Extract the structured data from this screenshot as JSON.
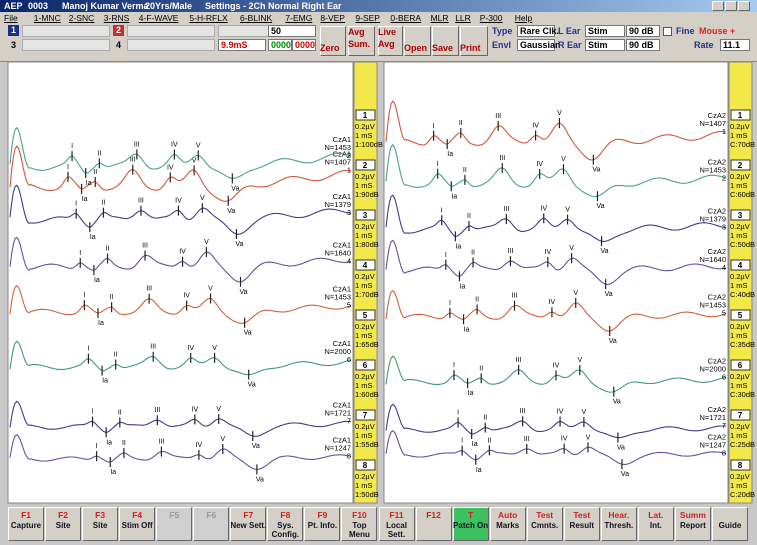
{
  "title_bar": {
    "app": "AEP",
    "record": "0003",
    "patient": "Manoj Kumar Verma",
    "age_sex": "20Yrs/Male",
    "settings": "Settings - 2Ch Normal Right Ear"
  },
  "menu": [
    "File",
    "1-MNC",
    "2-SNC",
    "3-RNS",
    "4-F-WAVE",
    "5-H-RFLX",
    "6-BLINK",
    "7-EMG",
    "8-VEP",
    "9-SEP",
    "0-BERA",
    "MLR",
    "LLR",
    "P-300",
    "Help"
  ],
  "toolbar": {
    "channel_1": "1",
    "channel_3": "3",
    "channel_2": "2",
    "channel_4": "4",
    "sweeps": "50",
    "window": "9.9mS",
    "count_a": "0000",
    "count_b": "0000",
    "zero": "Zero",
    "avg": "Avg",
    "sum": "Sum.",
    "live": "Live",
    "live_avg": "Avg",
    "open": "Open",
    "save": "Save",
    "print": "Print",
    "type_label": "Type",
    "type_value": "Rare Clk.",
    "envl_label": "Envl",
    "envl_value": "Gaussian",
    "l_ear": "L Ear",
    "l_stim": "Stim",
    "l_db": "90 dB",
    "r_ear": "R Ear",
    "r_stim": "Stim",
    "r_db": "90 dB",
    "fine": "Fine",
    "mouse": "Mouse +",
    "rate_label": "Rate",
    "rate_value": "11.1"
  },
  "peak_labels": [
    "I",
    "Ia",
    "II",
    "III",
    "IV",
    "V",
    "Va"
  ],
  "left_panel": {
    "traces": [
      {
        "site": "CzA1",
        "n": "N=1407",
        "num": "1",
        "gain": "0.2µV",
        "time": "1 mS",
        "level": "1:100dB",
        "color": "#d0573c"
      },
      {
        "site": "CzA1",
        "n": "N=1453",
        "num": "2",
        "gain": "0.2µV",
        "time": "1 mS",
        "level": "1:90dB",
        "color": "#4ba47c"
      },
      {
        "site": "CzA1",
        "n": "N=1379",
        "num": "3",
        "gain": "0.2µV",
        "time": "1 mS",
        "level": "1:80dB",
        "color": "#3d3d8c"
      },
      {
        "site": "CzA1",
        "n": "N=1640",
        "num": "4",
        "gain": "0.2µV",
        "time": "1 mS",
        "level": "1:70dB",
        "color": "#6b4ca2"
      },
      {
        "site": "CzA1",
        "n": "N=1453",
        "num": "5",
        "gain": "0.2µV",
        "time": "1 mS",
        "level": "1:65dB",
        "color": "#d0603c"
      },
      {
        "site": "CzA1",
        "n": "N=2000",
        "num": "6",
        "gain": "0.2µV",
        "time": "1 mS",
        "level": "1:60dB",
        "color": "#3e9c6c"
      },
      {
        "site": "CzA1",
        "n": "N=1721",
        "num": "7",
        "gain": "0.2µV",
        "time": "1 mS",
        "level": "1:55dB",
        "color": "#3d3d8c"
      },
      {
        "site": "CzA1",
        "n": "N=1247",
        "num": "8",
        "gain": "0.2µV",
        "time": "1 mS",
        "level": "1:50dB",
        "color": "#6b4ca2"
      }
    ]
  },
  "right_panel": {
    "traces": [
      {
        "site": "CzA2",
        "n": "N=1407",
        "num": "1",
        "gain": "0.2µV",
        "time": "1 mS",
        "level": "C:70dB",
        "color": "#d0573c"
      },
      {
        "site": "CzA2",
        "n": "N=1453",
        "num": "2",
        "gain": "0.2µV",
        "time": "1 mS",
        "level": "C:60dB",
        "color": "#4ba47c"
      },
      {
        "site": "CzA2",
        "n": "N=1379",
        "num": "3",
        "gain": "0.2µV",
        "time": "1 mS",
        "level": "C:50dB",
        "color": "#3d3d8c"
      },
      {
        "site": "CzA2",
        "n": "N=1640",
        "num": "4",
        "gain": "0.2µV",
        "time": "1 mS",
        "level": "C:40dB",
        "color": "#6b4ca2"
      },
      {
        "site": "CzA2",
        "n": "N=1453",
        "num": "5",
        "gain": "0.2µV",
        "time": "1 mS",
        "level": "C:35dB",
        "color": "#d0603c"
      },
      {
        "site": "CzA2",
        "n": "N=2000",
        "num": "6",
        "gain": "0.2µV",
        "time": "1 mS",
        "level": "C:30dB",
        "color": "#3e9c6c"
      },
      {
        "site": "CzA2",
        "n": "N=1721",
        "num": "7",
        "gain": "0.2µV",
        "time": "1 mS",
        "level": "C:25dB",
        "color": "#3d3d8c"
      },
      {
        "site": "CzA2",
        "n": "N=1247",
        "num": "8",
        "gain": "0.2µV",
        "time": "1 mS",
        "level": "C:20dB",
        "color": "#6b4ca2"
      }
    ]
  },
  "function_keys": [
    {
      "key": "F1",
      "label": "Capture"
    },
    {
      "key": "F2",
      "label": "Site"
    },
    {
      "key": "F3",
      "label": "Site"
    },
    {
      "key": "F4",
      "label": "Stim Off"
    },
    {
      "key": "F5",
      "label": ""
    },
    {
      "key": "F6",
      "label": ""
    },
    {
      "key": "F7",
      "label": "New Sett."
    },
    {
      "key": "F8",
      "label": "Sys. Config."
    },
    {
      "key": "F9",
      "label": "Pt. Info."
    },
    {
      "key": "F10",
      "label": "Top Menu"
    },
    {
      "key": "F11",
      "label": "Local Sett."
    },
    {
      "key": "F12",
      "label": ""
    },
    {
      "key": "T",
      "label": "Patch On"
    },
    {
      "key": "Auto",
      "label": "Marks"
    },
    {
      "key": "Test",
      "label": "Cmnts."
    },
    {
      "key": "Test",
      "label": "Result"
    },
    {
      "key": "Hear.",
      "label": "Thresh."
    },
    {
      "key": "Lat.",
      "label": "Int."
    },
    {
      "key": "Summ",
      "label": "Report"
    },
    {
      "key": "",
      "label": "Guide"
    }
  ]
}
